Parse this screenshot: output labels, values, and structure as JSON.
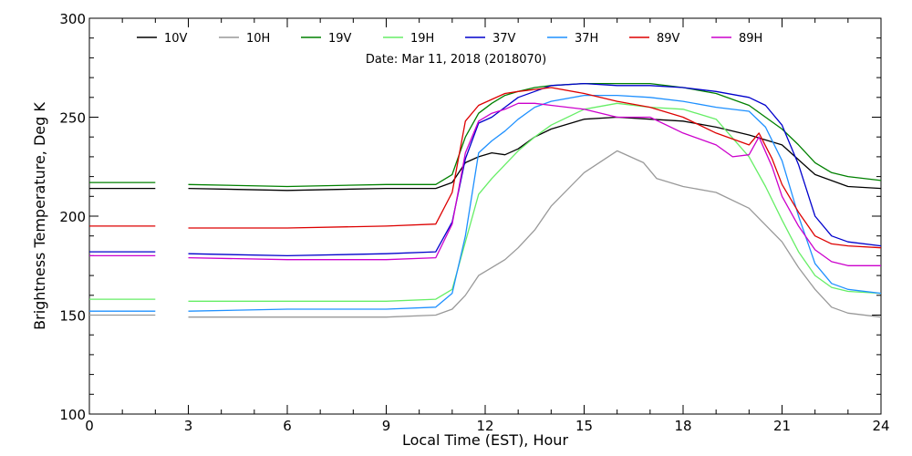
{
  "chart_data": {
    "type": "line",
    "title": "",
    "subtitle": "Date: Mar 11, 2018 (2018070)",
    "xlabel": "Local Time (EST), Hour",
    "ylabel": "Brightness Temperature, Deg K",
    "xlim": [
      0,
      24
    ],
    "ylim": [
      100,
      300
    ],
    "xticks": [
      0,
      3,
      6,
      9,
      12,
      15,
      18,
      21,
      24
    ],
    "yticks": [
      100,
      150,
      200,
      250,
      300
    ],
    "grid": false,
    "legend_position": "top",
    "series": [
      {
        "name": "10V",
        "color": "#000000",
        "x": [
          0,
          1.2,
          2,
          2,
          3,
          6,
          9,
          10.5,
          11,
          11.4,
          11.8,
          12.2,
          12.6,
          13,
          13.5,
          14,
          15,
          16,
          17,
          18,
          19,
          20,
          21,
          22,
          23,
          24
        ],
        "y": [
          214,
          214,
          214,
          null,
          214,
          213,
          214,
          214,
          217,
          227,
          230,
          232,
          231,
          234,
          240,
          244,
          249,
          250,
          249,
          248,
          245,
          241,
          236,
          221,
          215,
          214
        ]
      },
      {
        "name": "10H",
        "color": "#999999",
        "x": [
          0,
          1.2,
          2,
          2,
          3,
          6,
          9,
          10.5,
          11,
          11.4,
          11.8,
          12.2,
          12.6,
          13,
          13.5,
          14,
          15,
          16,
          16.8,
          17.2,
          18,
          19,
          20,
          21,
          21.5,
          22,
          22.5,
          23,
          24
        ],
        "y": [
          150,
          150,
          150,
          null,
          149,
          149,
          149,
          150,
          153,
          160,
          170,
          174,
          178,
          184,
          193,
          205,
          222,
          233,
          227,
          219,
          215,
          212,
          204,
          187,
          174,
          163,
          154,
          151,
          149
        ]
      },
      {
        "name": "19V",
        "color": "#008000",
        "x": [
          0,
          1.2,
          2,
          2,
          3,
          6,
          9,
          10.5,
          11,
          11.4,
          11.8,
          12.2,
          12.6,
          13,
          13.5,
          14,
          15,
          16,
          17,
          18,
          19,
          20,
          20.5,
          21,
          21.5,
          22,
          22.5,
          23,
          24
        ],
        "y": [
          217,
          217,
          217,
          null,
          216,
          215,
          216,
          216,
          221,
          240,
          252,
          257,
          261,
          263,
          265,
          266,
          267,
          267,
          267,
          265,
          262,
          256,
          250,
          244,
          236,
          227,
          222,
          220,
          218
        ]
      },
      {
        "name": "19H",
        "color": "#66ee66",
        "x": [
          0,
          1.2,
          2,
          2,
          3,
          6,
          9,
          10.5,
          11,
          11.4,
          11.8,
          12.2,
          12.6,
          13,
          13.5,
          14,
          15,
          16,
          17,
          18,
          19,
          20,
          20.5,
          21,
          21.5,
          22,
          22.5,
          23,
          24
        ],
        "y": [
          158,
          158,
          158,
          null,
          157,
          157,
          157,
          158,
          163,
          187,
          211,
          219,
          226,
          233,
          240,
          246,
          254,
          257,
          255,
          254,
          249,
          230,
          215,
          198,
          182,
          170,
          164,
          162,
          161
        ]
      },
      {
        "name": "37V",
        "color": "#0000cc",
        "x": [
          0,
          1.2,
          2,
          2,
          3,
          6,
          9,
          10.5,
          11,
          11.4,
          11.8,
          12.2,
          12.6,
          13,
          13.5,
          14,
          15,
          16,
          17,
          18,
          19,
          20,
          20.5,
          21,
          21.5,
          22,
          22.5,
          23,
          24
        ],
        "y": [
          182,
          182,
          182,
          null,
          181,
          180,
          181,
          182,
          197,
          229,
          247,
          250,
          255,
          260,
          263,
          266,
          267,
          266,
          266,
          265,
          263,
          260,
          256,
          246,
          226,
          200,
          190,
          187,
          185
        ]
      },
      {
        "name": "37H",
        "color": "#1e90ff",
        "x": [
          0,
          1.2,
          2,
          2,
          3,
          6,
          9,
          10.5,
          11,
          11.4,
          11.8,
          12.2,
          12.6,
          13,
          13.5,
          14,
          15,
          16,
          17,
          18,
          19,
          20,
          20.5,
          21,
          21.5,
          22,
          22.5,
          23,
          24
        ],
        "y": [
          152,
          152,
          152,
          null,
          152,
          153,
          153,
          154,
          161,
          190,
          232,
          238,
          243,
          249,
          255,
          258,
          261,
          261,
          260,
          258,
          255,
          253,
          245,
          228,
          200,
          176,
          166,
          163,
          161
        ]
      },
      {
        "name": "89V",
        "color": "#dd0000",
        "x": [
          0,
          1.2,
          2,
          2,
          3,
          6,
          9,
          10.5,
          11,
          11.4,
          11.8,
          12.2,
          12.6,
          13,
          13.5,
          14,
          15,
          16,
          17,
          18,
          19,
          20,
          20.3,
          20.7,
          21,
          21.5,
          22,
          22.5,
          23,
          24
        ],
        "y": [
          195,
          195,
          195,
          null,
          194,
          194,
          195,
          196,
          212,
          248,
          256,
          259,
          262,
          263,
          264,
          265,
          262,
          258,
          255,
          250,
          242,
          236,
          242,
          229,
          216,
          202,
          190,
          186,
          185,
          184
        ]
      },
      {
        "name": "89H",
        "color": "#cc00cc",
        "x": [
          0,
          1.2,
          2,
          2,
          3,
          6,
          9,
          10.5,
          11,
          11.4,
          11.8,
          12.2,
          12.6,
          13,
          13.5,
          14,
          15,
          16,
          17,
          18,
          19,
          19.5,
          20,
          20.3,
          20.7,
          21,
          21.5,
          22,
          22.5,
          23,
          24
        ],
        "y": [
          180,
          180,
          180,
          null,
          179,
          178,
          178,
          179,
          196,
          232,
          248,
          252,
          254,
          257,
          257,
          256,
          254,
          250,
          250,
          242,
          236,
          230,
          231,
          240,
          225,
          210,
          195,
          183,
          177,
          175,
          175
        ]
      }
    ]
  }
}
